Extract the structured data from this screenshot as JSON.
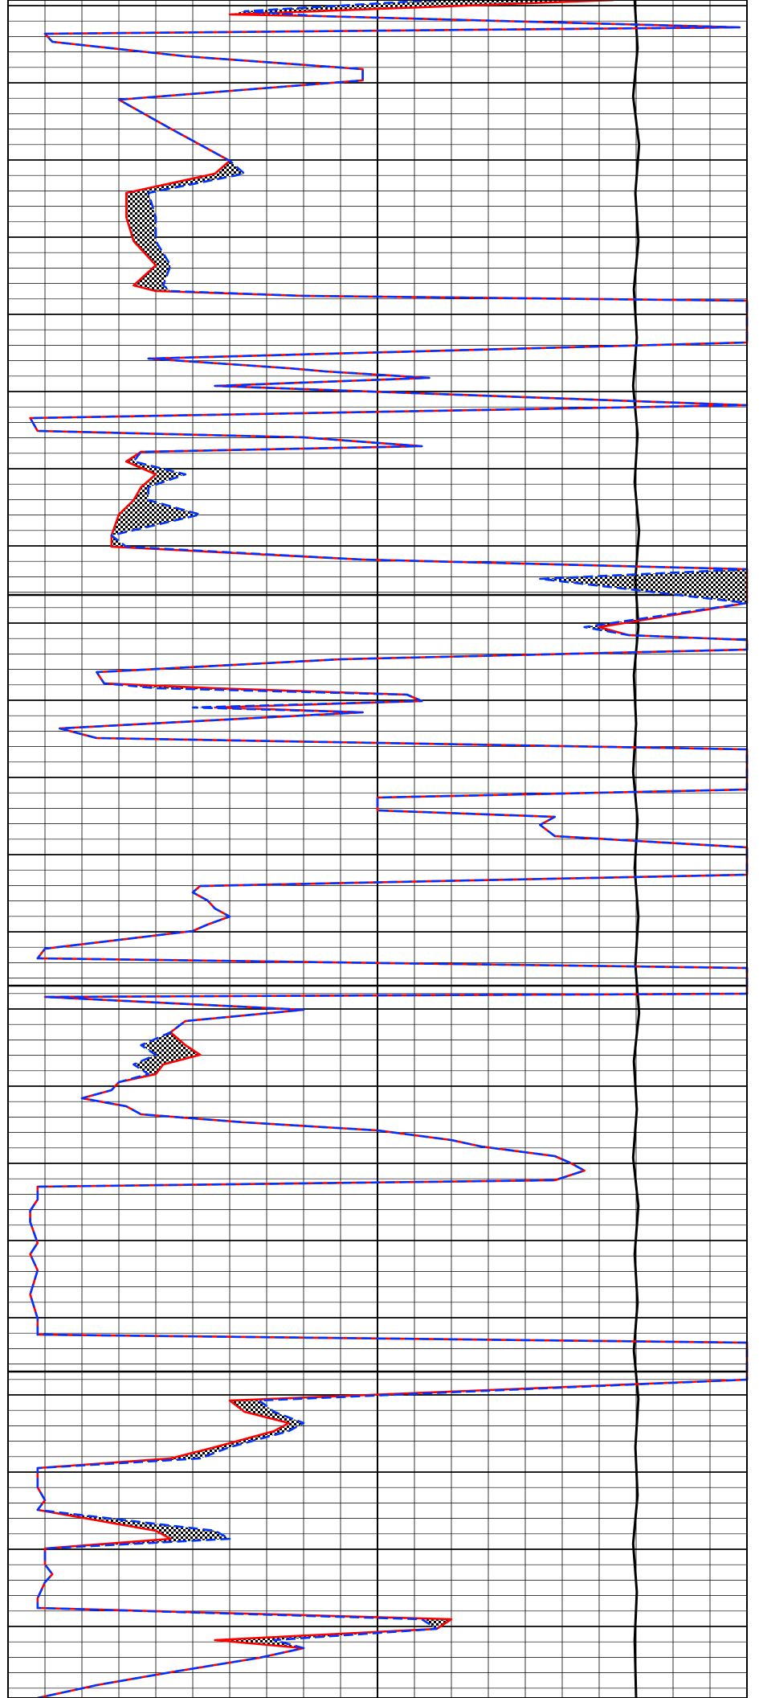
{
  "chart_data": {
    "type": "line",
    "title": "",
    "xlabel": "",
    "ylabel": "",
    "grid": true,
    "legend": "none",
    "depth_range": [
      0,
      2112
    ],
    "value_range": [
      0,
      100
    ],
    "series": [
      {
        "key": "solid",
        "color": "#ff0000",
        "style": "solid",
        "points": [
          [
            0,
            82
          ],
          [
            18,
            30
          ],
          [
            20,
            42
          ],
          [
            34,
            99
          ],
          [
            42,
            5
          ],
          [
            52,
            6
          ],
          [
            70,
            24
          ],
          [
            86,
            48
          ],
          [
            100,
            48
          ],
          [
            124,
            15
          ],
          [
            160,
            22
          ],
          [
            180,
            26
          ],
          [
            200,
            30
          ],
          [
            216,
            28
          ],
          [
            240,
            16
          ],
          [
            270,
            16
          ],
          [
            300,
            17
          ],
          [
            330,
            20
          ],
          [
            355,
            17
          ],
          [
            362,
            20
          ],
          [
            368,
            40
          ],
          [
            374,
            100
          ],
          [
            426,
            100
          ],
          [
            446,
            19
          ],
          [
            458,
            38
          ],
          [
            462,
            43
          ],
          [
            470,
            57
          ],
          [
            480,
            28
          ],
          [
            504,
            100
          ],
          [
            520,
            3
          ],
          [
            536,
            4
          ],
          [
            544,
            40
          ],
          [
            555,
            56
          ],
          [
            562,
            18
          ],
          [
            574,
            16
          ],
          [
            590,
            20
          ],
          [
            606,
            18
          ],
          [
            622,
            17
          ],
          [
            640,
            15
          ],
          [
            666,
            14
          ],
          [
            680,
            14
          ],
          [
            696,
            48
          ],
          [
            708,
            100
          ],
          [
            720,
            100
          ],
          [
            750,
            100
          ],
          [
            780,
            80
          ],
          [
            790,
            84
          ],
          [
            796,
            100
          ],
          [
            808,
            100
          ],
          [
            820,
            45
          ],
          [
            836,
            12
          ],
          [
            850,
            13
          ],
          [
            856,
            28
          ],
          [
            864,
            54
          ],
          [
            872,
            56
          ],
          [
            880,
            28
          ],
          [
            886,
            48
          ],
          [
            906,
            7
          ],
          [
            918,
            12
          ],
          [
            932,
            100
          ],
          [
            982,
            100
          ],
          [
            992,
            50
          ],
          [
            1008,
            50
          ],
          [
            1016,
            74
          ],
          [
            1026,
            72
          ],
          [
            1040,
            74
          ],
          [
            1054,
            100
          ],
          [
            1070,
            100
          ],
          [
            1088,
            100
          ],
          [
            1102,
            26
          ],
          [
            1110,
            25
          ],
          [
            1120,
            27
          ],
          [
            1130,
            28
          ],
          [
            1140,
            30
          ],
          [
            1150,
            27
          ],
          [
            1158,
            25
          ],
          [
            1180,
            5
          ],
          [
            1192,
            4
          ],
          [
            1204,
            100
          ],
          [
            1236,
            100
          ],
          [
            1240,
            5
          ],
          [
            1256,
            40
          ],
          [
            1270,
            24
          ],
          [
            1284,
            22
          ],
          [
            1300,
            24
          ],
          [
            1312,
            26
          ],
          [
            1324,
            21
          ],
          [
            1336,
            20
          ],
          [
            1346,
            15
          ],
          [
            1356,
            14
          ],
          [
            1366,
            10
          ],
          [
            1376,
            16
          ],
          [
            1386,
            18
          ],
          [
            1396,
            32
          ],
          [
            1406,
            50
          ],
          [
            1418,
            60
          ],
          [
            1426,
            64
          ],
          [
            1438,
            74
          ],
          [
            1446,
            76
          ],
          [
            1456,
            78
          ],
          [
            1468,
            74
          ],
          [
            1476,
            4
          ],
          [
            1492,
            4
          ],
          [
            1506,
            3
          ],
          [
            1520,
            3
          ],
          [
            1546,
            4
          ],
          [
            1560,
            3
          ],
          [
            1580,
            4
          ],
          [
            1610,
            3
          ],
          [
            1640,
            4
          ],
          [
            1660,
            4
          ],
          [
            1670,
            100
          ],
          [
            1680,
            100
          ],
          [
            1700,
            100
          ],
          [
            1716,
            100
          ],
          [
            1742,
            30
          ],
          [
            1756,
            32
          ],
          [
            1770,
            38
          ],
          [
            1780,
            36
          ],
          [
            1800,
            28
          ],
          [
            1814,
            22
          ],
          [
            1826,
            4
          ],
          [
            1850,
            4
          ],
          [
            1866,
            5
          ],
          [
            1878,
            4
          ],
          [
            1904,
            20
          ],
          [
            1914,
            22
          ],
          [
            1926,
            5
          ],
          [
            1946,
            5
          ],
          [
            1958,
            6
          ],
          [
            1968,
            5
          ],
          [
            1988,
            4
          ],
          [
            2000,
            4
          ],
          [
            2014,
            60
          ],
          [
            2026,
            58
          ],
          [
            2040,
            28
          ],
          [
            2050,
            40
          ],
          [
            2062,
            34
          ],
          [
            2080,
            22
          ],
          [
            2096,
            12
          ],
          [
            2112,
            4
          ]
        ]
      },
      {
        "key": "dashed",
        "color": "#0033ff",
        "style": "dashed",
        "points": [
          [
            0,
            58
          ],
          [
            14,
            32
          ],
          [
            20,
            42
          ],
          [
            34,
            99
          ],
          [
            42,
            5
          ],
          [
            52,
            6
          ],
          [
            70,
            24
          ],
          [
            86,
            48
          ],
          [
            100,
            48
          ],
          [
            124,
            15
          ],
          [
            160,
            22
          ],
          [
            180,
            26
          ],
          [
            200,
            30
          ],
          [
            216,
            32
          ],
          [
            240,
            19
          ],
          [
            270,
            20
          ],
          [
            300,
            20
          ],
          [
            330,
            22
          ],
          [
            355,
            21
          ],
          [
            362,
            22
          ],
          [
            368,
            40
          ],
          [
            374,
            100
          ],
          [
            426,
            100
          ],
          [
            446,
            19
          ],
          [
            458,
            38
          ],
          [
            462,
            43
          ],
          [
            470,
            57
          ],
          [
            480,
            28
          ],
          [
            504,
            100
          ],
          [
            520,
            3
          ],
          [
            536,
            4
          ],
          [
            544,
            40
          ],
          [
            555,
            56
          ],
          [
            562,
            18
          ],
          [
            574,
            17
          ],
          [
            590,
            24
          ],
          [
            606,
            19
          ],
          [
            622,
            19
          ],
          [
            640,
            26
          ],
          [
            666,
            14
          ],
          [
            680,
            16
          ],
          [
            696,
            48
          ],
          [
            708,
            100
          ],
          [
            720,
            72
          ],
          [
            750,
            100
          ],
          [
            780,
            78
          ],
          [
            790,
            84
          ],
          [
            796,
            100
          ],
          [
            808,
            100
          ],
          [
            820,
            45
          ],
          [
            836,
            12
          ],
          [
            850,
            13
          ],
          [
            856,
            20
          ],
          [
            864,
            54
          ],
          [
            872,
            56
          ],
          [
            880,
            25
          ],
          [
            886,
            48
          ],
          [
            906,
            7
          ],
          [
            918,
            12
          ],
          [
            932,
            100
          ],
          [
            982,
            100
          ],
          [
            992,
            50
          ],
          [
            1008,
            50
          ],
          [
            1016,
            74
          ],
          [
            1026,
            72
          ],
          [
            1040,
            74
          ],
          [
            1054,
            100
          ],
          [
            1070,
            100
          ],
          [
            1088,
            100
          ],
          [
            1102,
            26
          ],
          [
            1110,
            25
          ],
          [
            1120,
            27
          ],
          [
            1130,
            28
          ],
          [
            1140,
            30
          ],
          [
            1150,
            27
          ],
          [
            1158,
            25
          ],
          [
            1180,
            5
          ],
          [
            1192,
            4
          ],
          [
            1204,
            100
          ],
          [
            1236,
            100
          ],
          [
            1240,
            5
          ],
          [
            1256,
            40
          ],
          [
            1270,
            24
          ],
          [
            1284,
            22
          ],
          [
            1300,
            18
          ],
          [
            1312,
            20
          ],
          [
            1324,
            17
          ],
          [
            1336,
            19
          ],
          [
            1346,
            15
          ],
          [
            1356,
            14
          ],
          [
            1366,
            10
          ],
          [
            1376,
            16
          ],
          [
            1386,
            18
          ],
          [
            1396,
            32
          ],
          [
            1406,
            50
          ],
          [
            1418,
            60
          ],
          [
            1426,
            64
          ],
          [
            1438,
            74
          ],
          [
            1446,
            76
          ],
          [
            1456,
            78
          ],
          [
            1468,
            74
          ],
          [
            1476,
            4
          ],
          [
            1492,
            4
          ],
          [
            1506,
            3
          ],
          [
            1520,
            3
          ],
          [
            1546,
            4
          ],
          [
            1560,
            3
          ],
          [
            1580,
            4
          ],
          [
            1610,
            3
          ],
          [
            1640,
            4
          ],
          [
            1660,
            4
          ],
          [
            1670,
            100
          ],
          [
            1680,
            100
          ],
          [
            1700,
            100
          ],
          [
            1716,
            100
          ],
          [
            1742,
            34
          ],
          [
            1756,
            36
          ],
          [
            1770,
            40
          ],
          [
            1780,
            38
          ],
          [
            1800,
            30
          ],
          [
            1814,
            26
          ],
          [
            1826,
            4
          ],
          [
            1850,
            4
          ],
          [
            1866,
            5
          ],
          [
            1878,
            4
          ],
          [
            1904,
            28
          ],
          [
            1914,
            30
          ],
          [
            1926,
            5
          ],
          [
            1946,
            5
          ],
          [
            1958,
            6
          ],
          [
            1968,
            5
          ],
          [
            1988,
            4
          ],
          [
            2000,
            4
          ],
          [
            2014,
            56
          ],
          [
            2026,
            58
          ],
          [
            2040,
            36
          ],
          [
            2050,
            40
          ],
          [
            2062,
            34
          ],
          [
            2080,
            22
          ],
          [
            2096,
            12
          ],
          [
            2112,
            4
          ]
        ]
      },
      {
        "key": "curve",
        "color": "#000000",
        "style": "solid",
        "points": [
          [
            0,
            84.8
          ],
          [
            60,
            85.2
          ],
          [
            120,
            84.6
          ],
          [
            180,
            85.4
          ],
          [
            240,
            84.9
          ],
          [
            300,
            85.3
          ],
          [
            360,
            84.7
          ],
          [
            420,
            85.1
          ],
          [
            480,
            84.6
          ],
          [
            540,
            85.2
          ],
          [
            600,
            84.8
          ],
          [
            660,
            85.4
          ],
          [
            720,
            84.9
          ],
          [
            780,
            85.3
          ],
          [
            840,
            84.7
          ],
          [
            900,
            85.0
          ],
          [
            960,
            84.6
          ],
          [
            1020,
            85.2
          ],
          [
            1080,
            84.8
          ],
          [
            1140,
            85.3
          ],
          [
            1200,
            84.9
          ],
          [
            1260,
            85.4
          ],
          [
            1320,
            84.7
          ],
          [
            1380,
            85.1
          ],
          [
            1440,
            84.6
          ],
          [
            1500,
            85.3
          ],
          [
            1560,
            84.8
          ],
          [
            1620,
            85.2
          ],
          [
            1680,
            84.7
          ],
          [
            1740,
            85.3
          ],
          [
            1800,
            84.9
          ],
          [
            1860,
            85.2
          ],
          [
            1920,
            84.6
          ],
          [
            1980,
            85.1
          ],
          [
            2040,
            84.8
          ],
          [
            2112,
            85.0
          ]
        ]
      }
    ]
  }
}
